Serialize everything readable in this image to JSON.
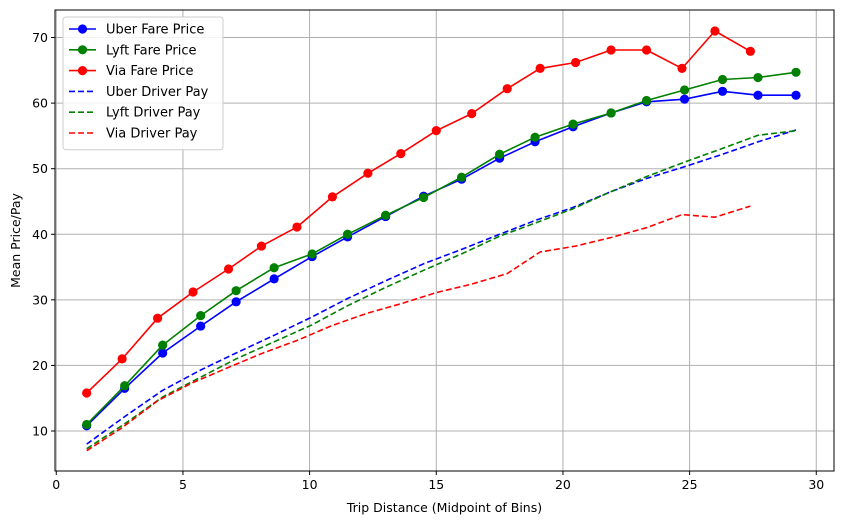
{
  "chart_data": {
    "type": "line",
    "xlabel": "Trip Distance (Midpoint of Bins)",
    "ylabel": "Mean Price/Pay",
    "xlim": [
      -0.05,
      30.7
    ],
    "ylim": [
      3.9,
      74.2
    ],
    "xticks": [
      0,
      5,
      10,
      15,
      20,
      25,
      30
    ],
    "yticks": [
      10,
      20,
      30,
      40,
      50,
      60,
      70
    ],
    "grid": true,
    "legend_position": "top-left",
    "series": [
      {
        "name": "Uber Fare Price",
        "color": "#0000ff",
        "style": "solid",
        "marker": "circle",
        "x": [
          1.2,
          2.7,
          4.2,
          5.7,
          7.1,
          8.6,
          10.1,
          11.5,
          13.0,
          14.5,
          16.0,
          17.5,
          18.9,
          20.4,
          21.9,
          23.3,
          24.8,
          26.3,
          27.7,
          29.2
        ],
        "y": [
          10.8,
          16.5,
          21.9,
          26.0,
          29.7,
          33.2,
          36.6,
          39.6,
          42.7,
          45.8,
          48.4,
          51.6,
          54.1,
          56.4,
          58.5,
          60.2,
          60.6,
          61.8,
          61.2,
          61.2
        ]
      },
      {
        "name": "Lyft Fare Price",
        "color": "#008000",
        "style": "solid",
        "marker": "circle",
        "x": [
          1.2,
          2.7,
          4.2,
          5.7,
          7.1,
          8.6,
          10.1,
          11.5,
          13.0,
          14.5,
          16.0,
          17.5,
          18.9,
          20.4,
          21.9,
          23.3,
          24.8,
          26.3,
          27.7,
          29.2
        ],
        "y": [
          11.0,
          16.9,
          23.1,
          27.6,
          31.4,
          34.9,
          37.0,
          40.0,
          42.9,
          45.6,
          48.7,
          52.2,
          54.8,
          56.8,
          58.5,
          60.4,
          62.0,
          63.6,
          63.9,
          64.7
        ]
      },
      {
        "name": "Via Fare Price",
        "color": "#ff0000",
        "style": "solid",
        "marker": "circle",
        "x": [
          1.2,
          2.6,
          4.0,
          5.4,
          6.8,
          8.1,
          9.5,
          10.9,
          12.3,
          13.6,
          15.0,
          16.4,
          17.8,
          19.1,
          20.5,
          21.9,
          23.3,
          24.7,
          26.0,
          27.4
        ],
        "y": [
          15.8,
          21.0,
          27.2,
          31.2,
          34.7,
          38.2,
          41.1,
          45.7,
          49.3,
          52.3,
          55.8,
          58.4,
          62.2,
          65.3,
          66.2,
          68.1,
          68.1,
          65.3,
          71.0,
          67.9
        ]
      },
      {
        "name": "Uber Driver Pay",
        "color": "#0000ff",
        "style": "dashed",
        "marker": "none",
        "x": [
          1.2,
          2.7,
          4.2,
          5.7,
          7.1,
          8.6,
          10.1,
          11.5,
          13.0,
          14.5,
          16.0,
          17.5,
          18.9,
          20.4,
          21.9,
          23.3,
          24.8,
          26.3,
          27.7,
          29.2
        ],
        "y": [
          8.0,
          12.2,
          16.2,
          19.3,
          21.9,
          24.6,
          27.4,
          30.2,
          32.9,
          35.5,
          37.7,
          40.0,
          42.1,
          44.1,
          46.5,
          48.5,
          50.3,
          52.2,
          54.1,
          55.9
        ]
      },
      {
        "name": "Lyft Driver Pay",
        "color": "#008000",
        "style": "dashed",
        "marker": "none",
        "x": [
          1.2,
          2.7,
          4.2,
          5.7,
          7.1,
          8.6,
          10.1,
          11.5,
          13.0,
          14.5,
          16.0,
          17.5,
          18.9,
          20.4,
          21.9,
          23.3,
          24.8,
          26.3,
          27.7,
          29.2
        ],
        "y": [
          7.3,
          11.1,
          15.2,
          18.2,
          21.0,
          23.6,
          26.2,
          29.1,
          31.9,
          34.5,
          37.0,
          39.7,
          41.7,
          43.9,
          46.5,
          48.8,
          51.0,
          53.1,
          55.1,
          55.8
        ]
      },
      {
        "name": "Via Driver Pay",
        "color": "#ff0000",
        "style": "dashed",
        "marker": "none",
        "x": [
          1.2,
          2.6,
          4.0,
          5.4,
          6.8,
          8.1,
          9.5,
          10.9,
          12.3,
          13.6,
          15.0,
          16.4,
          17.8,
          19.1,
          20.5,
          21.9,
          23.3,
          24.7,
          26.0,
          27.4
        ],
        "y": [
          7.0,
          10.5,
          14.6,
          17.4,
          19.7,
          21.8,
          23.8,
          26.1,
          28.0,
          29.4,
          31.1,
          32.4,
          34.0,
          37.3,
          38.2,
          39.5,
          41.0,
          43.0,
          42.6,
          44.3
        ]
      }
    ]
  }
}
